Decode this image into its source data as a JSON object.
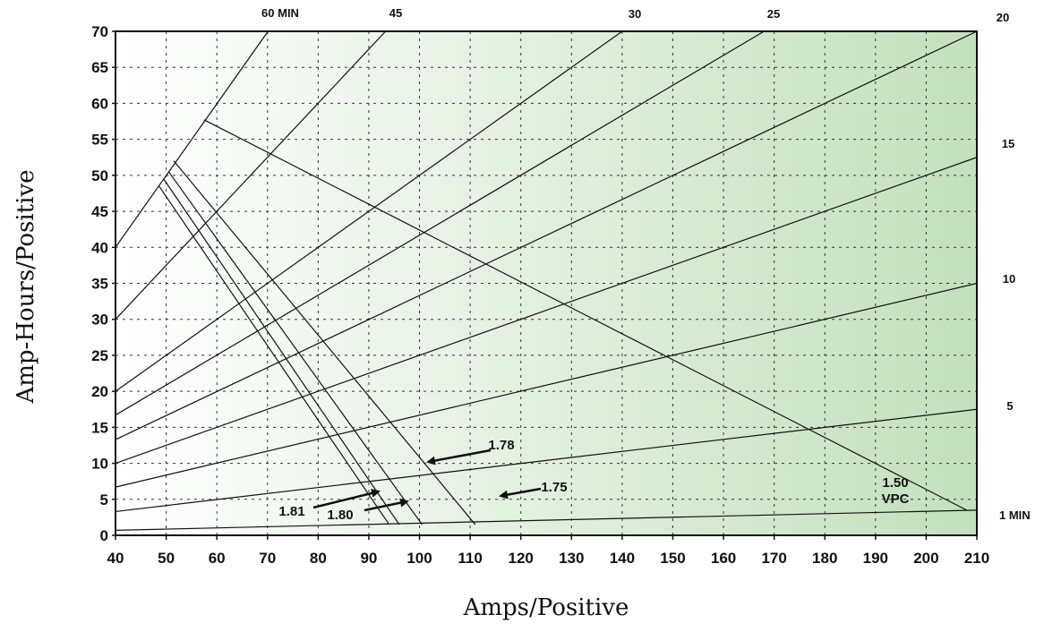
{
  "chart_data": {
    "type": "line",
    "title": "",
    "xlabel": "Amps/Positive",
    "ylabel": "Amp-Hours/Positive",
    "xlim": [
      40,
      210
    ],
    "ylim": [
      0,
      70
    ],
    "xticks": [
      40,
      50,
      60,
      70,
      80,
      90,
      100,
      110,
      120,
      130,
      140,
      150,
      160,
      170,
      180,
      190,
      200,
      210
    ],
    "yticks": [
      0,
      5,
      10,
      15,
      20,
      25,
      30,
      35,
      40,
      45,
      50,
      55,
      60,
      65,
      70
    ],
    "xtick_labels": [
      "40",
      "50",
      "60",
      "70",
      "80",
      "90",
      "100",
      "110",
      "120",
      "130",
      "140",
      "150",
      "160",
      "170",
      "180",
      "190",
      "200",
      "210"
    ],
    "ytick_labels": [
      "0",
      "5",
      "10",
      "15",
      "20",
      "25",
      "30",
      "35",
      "40",
      "45",
      "50",
      "55",
      "60",
      "65",
      "70"
    ],
    "grid": true,
    "background": "gradient white to green",
    "colors": {
      "gradient_start": "#ffffff",
      "gradient_end": "#c3e0bd",
      "line": "#111111",
      "grid": "#333333"
    },
    "time_lines": [
      {
        "name": "60 MIN",
        "label": "60 MIN",
        "x": [
          40,
          70.1
        ],
        "y": [
          40,
          70
        ]
      },
      {
        "name": "45",
        "label": "45",
        "x": [
          40,
          93.3
        ],
        "y": [
          30,
          70
        ]
      },
      {
        "name": "30",
        "label": "30",
        "x": [
          40,
          140
        ],
        "y": [
          20,
          70
        ]
      },
      {
        "name": "25",
        "label": "25",
        "x": [
          40,
          168
        ],
        "y": [
          16.7,
          70
        ]
      },
      {
        "name": "20",
        "label": "20",
        "x": [
          40,
          210
        ],
        "y": [
          13.3,
          70
        ]
      },
      {
        "name": "15",
        "label": "15",
        "x": [
          40,
          210
        ],
        "y": [
          10,
          52.5
        ]
      },
      {
        "name": "10",
        "label": "10",
        "x": [
          40,
          210
        ],
        "y": [
          6.7,
          35
        ]
      },
      {
        "name": "5",
        "label": "5",
        "x": [
          40,
          210
        ],
        "y": [
          3.3,
          17.5
        ]
      },
      {
        "name": "1 MIN",
        "label": "1 MIN",
        "x": [
          40,
          210
        ],
        "y": [
          0.7,
          3.5
        ]
      }
    ],
    "voltage_lines": [
      {
        "name": "1.81",
        "label": "1.81",
        "x": [
          48.6,
          94
        ],
        "y": [
          48.5,
          1.5
        ]
      },
      {
        "name": "1.80",
        "label": "1.80",
        "x": [
          49.5,
          96
        ],
        "y": [
          49.5,
          1.5
        ]
      },
      {
        "name": "1.78",
        "label": "1.78",
        "x": [
          50.5,
          100.5
        ],
        "y": [
          50.5,
          1.5
        ]
      },
      {
        "name": "1.75",
        "label": "1.75",
        "x": [
          51.5,
          111
        ],
        "y": [
          52,
          1.5
        ]
      },
      {
        "name": "1.50 VPC",
        "label": [
          "1.50",
          "VPC"
        ],
        "x": [
          57.5,
          208
        ],
        "y": [
          57.7,
          3.5
        ]
      }
    ]
  }
}
